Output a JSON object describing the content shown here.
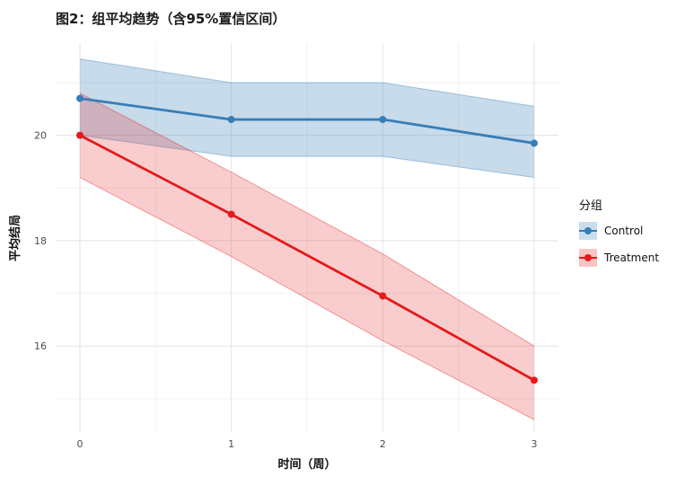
{
  "chart_data": {
    "type": "line",
    "title": "图2：组平均趋势（含95%置信区间）",
    "xlabel": "时间（周）",
    "ylabel": "平均结局",
    "legend_title": "分组",
    "legend_position": "right",
    "grid": "major+minor",
    "x": [
      0,
      1,
      2,
      3
    ],
    "xticks": [
      0,
      1,
      2,
      3
    ],
    "yticks": [
      16,
      18,
      20
    ],
    "xminor": [
      0.5,
      1.5,
      2.5
    ],
    "yminor": [
      15,
      17,
      19,
      21
    ],
    "xlim": [
      -0.16,
      3.16
    ],
    "ylim": [
      14.35,
      21.75
    ],
    "series": [
      {
        "name": "Control",
        "color": "#377eb8",
        "ribbon_opacity": 0.28,
        "mean": [
          20.7,
          20.3,
          20.3,
          19.85
        ],
        "upper": [
          21.45,
          21.0,
          21.0,
          20.55
        ],
        "lower": [
          20.0,
          19.6,
          19.6,
          19.2
        ]
      },
      {
        "name": "Treatment",
        "color": "#e41a1c",
        "ribbon_opacity": 0.22,
        "mean": [
          20.0,
          18.5,
          16.95,
          15.35
        ],
        "upper": [
          20.8,
          19.3,
          17.75,
          16.0
        ],
        "lower": [
          19.2,
          17.7,
          16.1,
          14.6
        ]
      }
    ]
  }
}
